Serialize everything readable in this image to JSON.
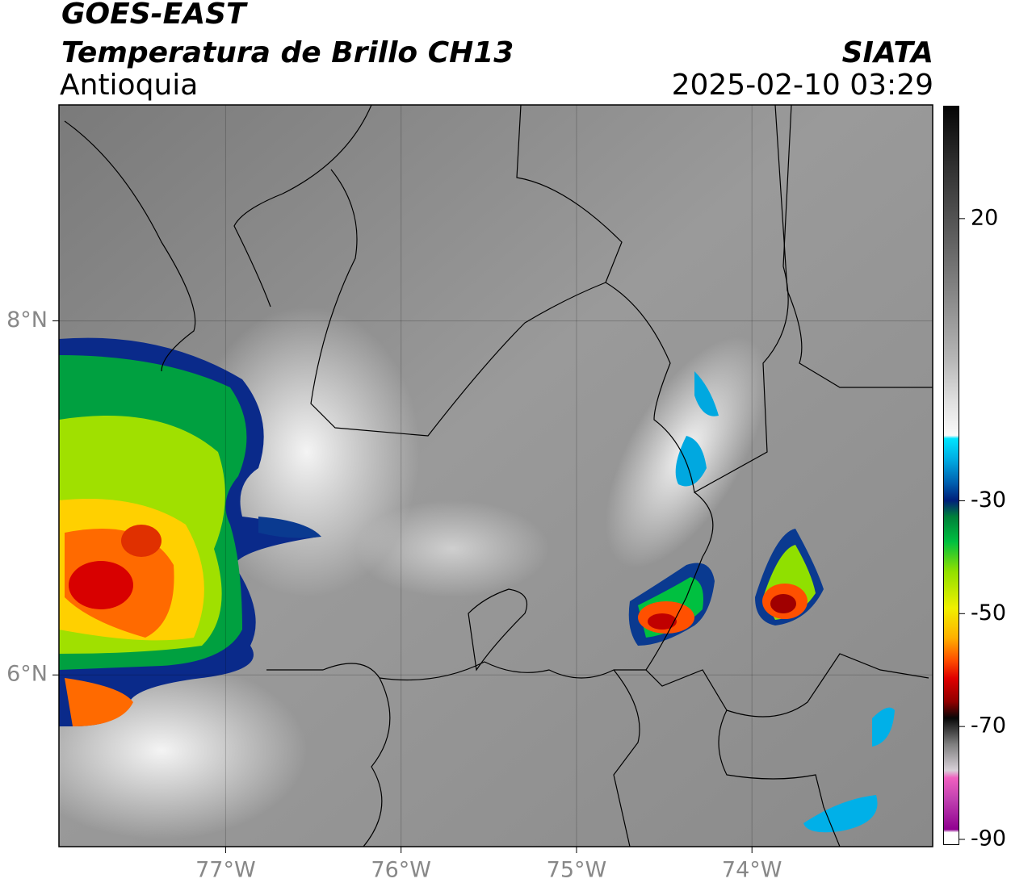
{
  "header": {
    "title": "GOES-EAST",
    "subtitle": "Temperatura de Brillo CH13",
    "region": "Antioquia",
    "source": "SIATA",
    "timestamp": "2025-02-10 03:29"
  },
  "chart_data": {
    "type": "map",
    "xlim": [
      -77.95,
      -72.97
    ],
    "ylim": [
      5.03,
      9.22
    ],
    "xticks": [
      {
        "value": -77,
        "label": "77°W"
      },
      {
        "value": -76,
        "label": "76°W"
      },
      {
        "value": -75,
        "label": "75°W"
      },
      {
        "value": -74,
        "label": "74°W"
      }
    ],
    "yticks": [
      {
        "value": 6,
        "label": "6°N"
      },
      {
        "value": 8,
        "label": "8°N"
      }
    ],
    "grid": true,
    "colorbar": {
      "clim": [
        -91,
        40
      ],
      "ticks": [
        20,
        -30,
        -50,
        -70,
        -90
      ]
    }
  }
}
